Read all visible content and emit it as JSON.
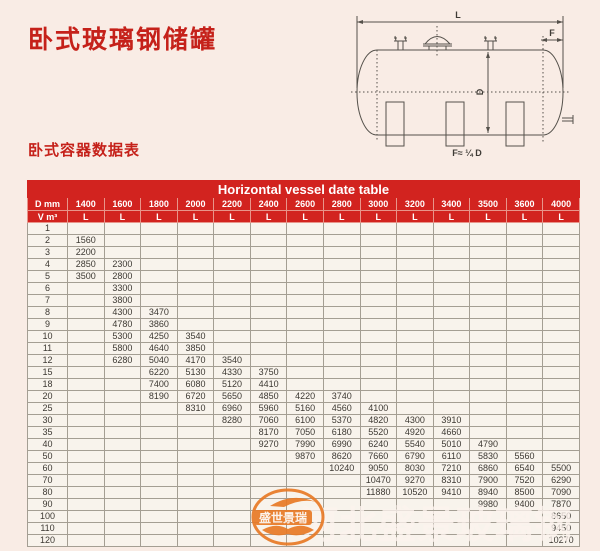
{
  "page": {
    "title": "卧式玻璃钢储罐",
    "subtitle": "卧式容器数据表"
  },
  "diagram": {
    "length_label": "L",
    "front_label": "F",
    "diameter_label": "D",
    "formula_label": "F≈ ¼ D"
  },
  "table": {
    "title": "Horizontal vessel date table",
    "corner_top": "D mm",
    "corner_bottom": "V m³",
    "unit_label": "L",
    "diameters": [
      "1400",
      "1600",
      "1800",
      "2000",
      "2200",
      "2400",
      "2600",
      "2800",
      "3000",
      "3200",
      "3400",
      "3500",
      "3600",
      "4000"
    ],
    "rows": [
      {
        "v": "1",
        "cells": [
          "",
          "",
          "",
          "",
          "",
          "",
          "",
          "",
          "",
          "",
          "",
          "",
          "",
          ""
        ]
      },
      {
        "v": "2",
        "cells": [
          "1560",
          "",
          "",
          "",
          "",
          "",
          "",
          "",
          "",
          "",
          "",
          "",
          "",
          ""
        ]
      },
      {
        "v": "3",
        "cells": [
          "2200",
          "",
          "",
          "",
          "",
          "",
          "",
          "",
          "",
          "",
          "",
          "",
          "",
          ""
        ]
      },
      {
        "v": "4",
        "cells": [
          "2850",
          "2300",
          "",
          "",
          "",
          "",
          "",
          "",
          "",
          "",
          "",
          "",
          "",
          ""
        ]
      },
      {
        "v": "5",
        "cells": [
          "3500",
          "2800",
          "",
          "",
          "",
          "",
          "",
          "",
          "",
          "",
          "",
          "",
          "",
          ""
        ]
      },
      {
        "v": "6",
        "cells": [
          "",
          "3300",
          "",
          "",
          "",
          "",
          "",
          "",
          "",
          "",
          "",
          "",
          "",
          ""
        ]
      },
      {
        "v": "7",
        "cells": [
          "",
          "3800",
          "",
          "",
          "",
          "",
          "",
          "",
          "",
          "",
          "",
          "",
          "",
          ""
        ]
      },
      {
        "v": "8",
        "cells": [
          "",
          "4300",
          "3470",
          "",
          "",
          "",
          "",
          "",
          "",
          "",
          "",
          "",
          "",
          ""
        ]
      },
      {
        "v": "9",
        "cells": [
          "",
          "4780",
          "3860",
          "",
          "",
          "",
          "",
          "",
          "",
          "",
          "",
          "",
          "",
          ""
        ]
      },
      {
        "v": "10",
        "cells": [
          "",
          "5300",
          "4250",
          "3540",
          "",
          "",
          "",
          "",
          "",
          "",
          "",
          "",
          "",
          ""
        ]
      },
      {
        "v": "11",
        "cells": [
          "",
          "5800",
          "4640",
          "3850",
          "",
          "",
          "",
          "",
          "",
          "",
          "",
          "",
          "",
          ""
        ]
      },
      {
        "v": "12",
        "cells": [
          "",
          "6280",
          "5040",
          "4170",
          "3540",
          "",
          "",
          "",
          "",
          "",
          "",
          "",
          "",
          ""
        ]
      },
      {
        "v": "15",
        "cells": [
          "",
          "",
          "6220",
          "5130",
          "4330",
          "3750",
          "",
          "",
          "",
          "",
          "",
          "",
          "",
          ""
        ]
      },
      {
        "v": "18",
        "cells": [
          "",
          "",
          "7400",
          "6080",
          "5120",
          "4410",
          "",
          "",
          "",
          "",
          "",
          "",
          "",
          ""
        ]
      },
      {
        "v": "20",
        "cells": [
          "",
          "",
          "8190",
          "6720",
          "5650",
          "4850",
          "4220",
          "3740",
          "",
          "",
          "",
          "",
          "",
          ""
        ]
      },
      {
        "v": "25",
        "cells": [
          "",
          "",
          "",
          "8310",
          "6960",
          "5960",
          "5160",
          "4560",
          "4100",
          "",
          "",
          "",
          "",
          ""
        ]
      },
      {
        "v": "30",
        "cells": [
          "",
          "",
          "",
          "",
          "8280",
          "7060",
          "6100",
          "5370",
          "4820",
          "4300",
          "3910",
          "",
          "",
          ""
        ]
      },
      {
        "v": "35",
        "cells": [
          "",
          "",
          "",
          "",
          "",
          "8170",
          "7050",
          "6180",
          "5520",
          "4920",
          "4660",
          "",
          "",
          ""
        ]
      },
      {
        "v": "40",
        "cells": [
          "",
          "",
          "",
          "",
          "",
          "9270",
          "7990",
          "6990",
          "6240",
          "5540",
          "5010",
          "4790",
          "",
          ""
        ]
      },
      {
        "v": "50",
        "cells": [
          "",
          "",
          "",
          "",
          "",
          "",
          "9870",
          "8620",
          "7660",
          "6790",
          "6110",
          "5830",
          "5560",
          ""
        ]
      },
      {
        "v": "60",
        "cells": [
          "",
          "",
          "",
          "",
          "",
          "",
          "",
          "10240",
          "9050",
          "8030",
          "7210",
          "6860",
          "6540",
          "5500"
        ]
      },
      {
        "v": "70",
        "cells": [
          "",
          "",
          "",
          "",
          "",
          "",
          "",
          "",
          "10470",
          "9270",
          "8310",
          "7900",
          "7520",
          "6290"
        ]
      },
      {
        "v": "80",
        "cells": [
          "",
          "",
          "",
          "",
          "",
          "",
          "",
          "",
          "11880",
          "10520",
          "9410",
          "8940",
          "8500",
          "7090"
        ]
      },
      {
        "v": "90",
        "cells": [
          "",
          "",
          "",
          "",
          "",
          "",
          "",
          "",
          "",
          "",
          "",
          "9980",
          "9400",
          "7870"
        ]
      },
      {
        "v": "100",
        "cells": [
          "",
          "",
          "",
          "",
          "",
          "",
          "",
          "",
          "",
          "",
          "",
          "",
          "",
          "8650"
        ]
      },
      {
        "v": "110",
        "cells": [
          "",
          "",
          "",
          "",
          "",
          "",
          "",
          "",
          "",
          "",
          "",
          "",
          "",
          "9450"
        ]
      },
      {
        "v": "120",
        "cells": [
          "",
          "",
          "",
          "",
          "",
          "",
          "",
          "",
          "",
          "",
          "",
          "",
          "",
          "10270"
        ]
      }
    ]
  },
  "watermark": {
    "logo_text": "盛世景瑞",
    "text": "河北盛景玻璃钢"
  },
  "colors": {
    "page_background": "#f9ece5",
    "accent_red": "#d2231f",
    "title_red": "#c5211a",
    "cell_background": "#f8f3ec",
    "grid_border": "#a49e93",
    "diagram_line": "#55514b",
    "watermark_orange": "#e87a26"
  }
}
